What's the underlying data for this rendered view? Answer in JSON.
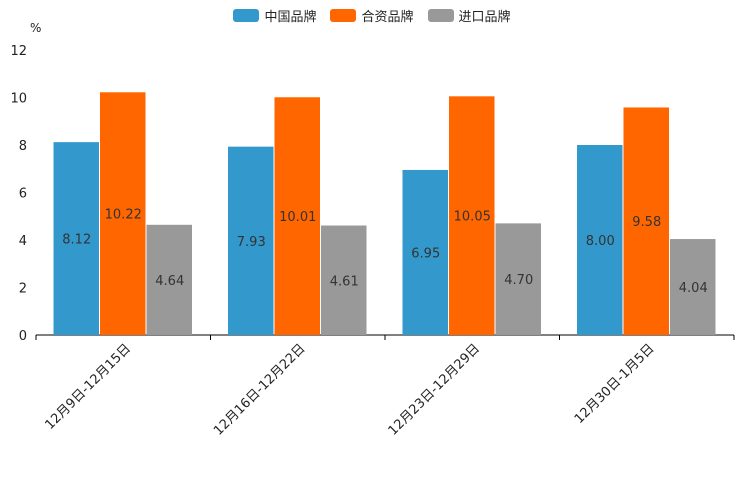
{
  "chart_data": {
    "type": "bar",
    "unit": "%",
    "categories": [
      "12月9日-12月15日",
      "12月16日-12月22日",
      "12月23日-12月29日",
      "12月30日-1月5日"
    ],
    "series": [
      {
        "name": "中国品牌",
        "color": "#3399cc",
        "values": [
          8.12,
          7.93,
          6.95,
          8.0
        ],
        "labels": [
          "8.12",
          "7.93",
          "6.95",
          "8.00"
        ]
      },
      {
        "name": "合资品牌",
        "color": "#ff6600",
        "values": [
          10.22,
          10.01,
          10.05,
          9.58
        ],
        "labels": [
          "10.22",
          "10.01",
          "10.05",
          "9.58"
        ]
      },
      {
        "name": "进口品牌",
        "color": "#999999",
        "values": [
          4.64,
          4.61,
          4.7,
          4.04
        ],
        "labels": [
          "4.64",
          "4.61",
          "4.70",
          "4.04"
        ]
      }
    ],
    "yticks": [
      "0",
      "2",
      "4",
      "6",
      "8",
      "10",
      "12"
    ],
    "ylim": [
      0,
      12
    ],
    "legend_position": "top-center",
    "grid": false
  }
}
